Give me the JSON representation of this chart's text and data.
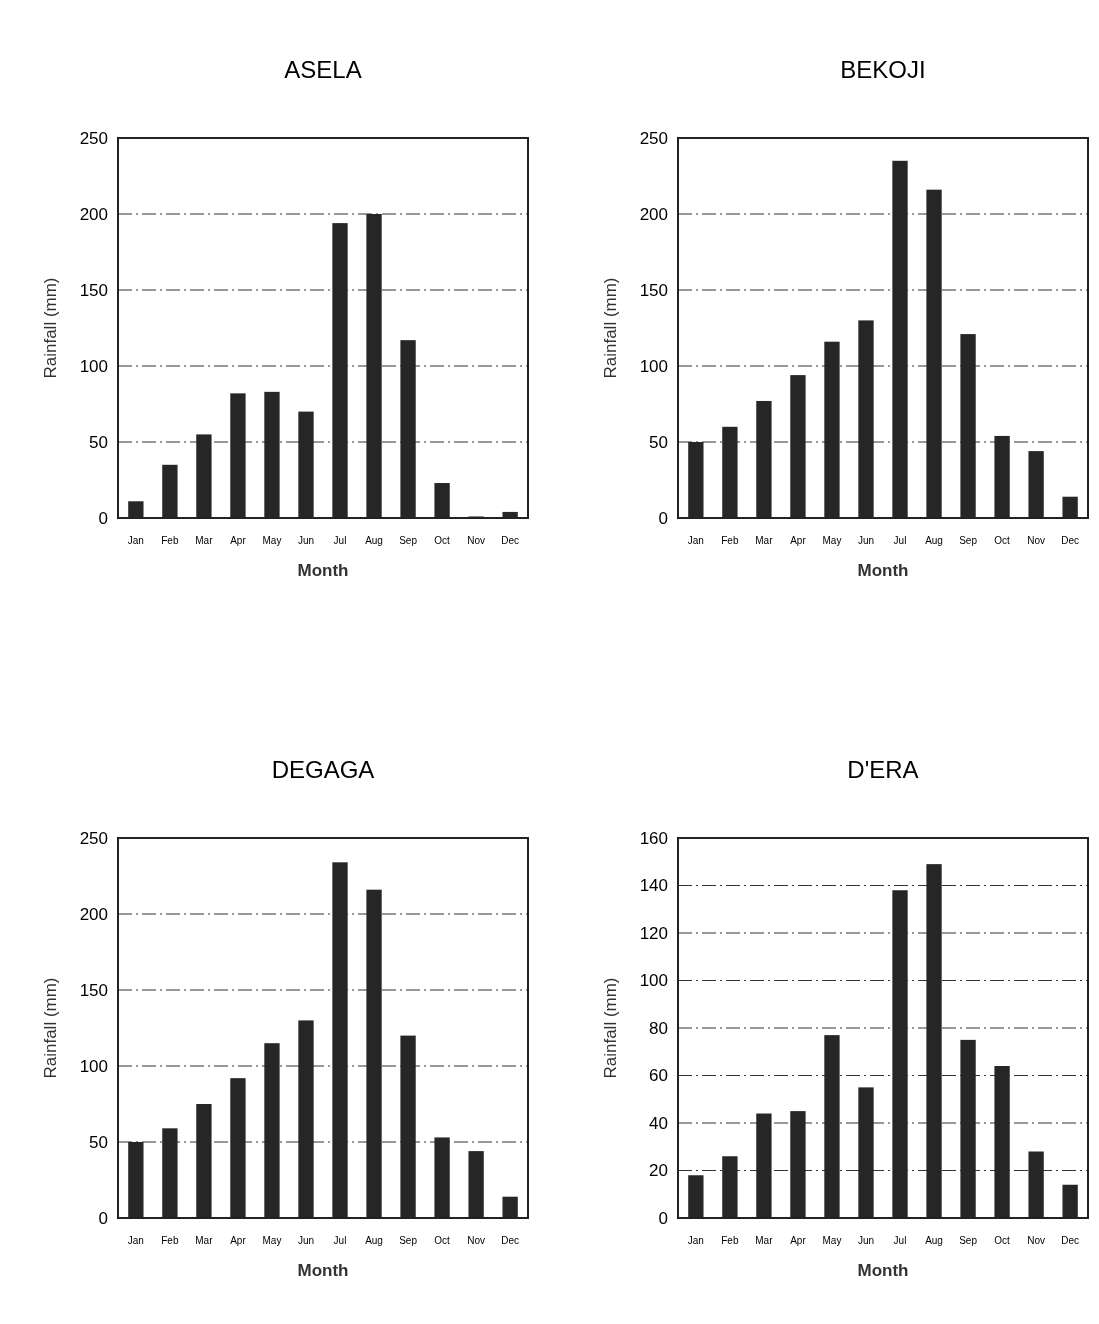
{
  "chart_data": [
    {
      "type": "bar",
      "title": "ASELA",
      "xlabel": "Month",
      "ylabel": "Rainfall (mm)",
      "categories": [
        "Jan",
        "Feb",
        "Mar",
        "Apr",
        "May",
        "Jun",
        "Jul",
        "Aug",
        "Sep",
        "Oct",
        "Nov",
        "Dec"
      ],
      "values": [
        11,
        35,
        55,
        82,
        83,
        70,
        194,
        200,
        117,
        23,
        1,
        4
      ],
      "color": "#262626",
      "ylim": [
        0,
        250
      ],
      "yticks": [
        0,
        50,
        100,
        150,
        200,
        250
      ],
      "grid": "y"
    },
    {
      "type": "bar",
      "title": "BEKOJI",
      "xlabel": "Month",
      "ylabel": "Rainfall (mm)",
      "categories": [
        "Jan",
        "Feb",
        "Mar",
        "Apr",
        "May",
        "Jun",
        "Jul",
        "Aug",
        "Sep",
        "Oct",
        "Nov",
        "Dec"
      ],
      "values": [
        50,
        60,
        77,
        94,
        116,
        130,
        235,
        216,
        121,
        54,
        44,
        14
      ],
      "color": "#262626",
      "ylim": [
        0,
        250
      ],
      "yticks": [
        0,
        50,
        100,
        150,
        200,
        250
      ],
      "grid": "y"
    },
    {
      "type": "bar",
      "title": "DEGAGA",
      "xlabel": "Month",
      "ylabel": "Rainfall (mm)",
      "categories": [
        "Jan",
        "Feb",
        "Mar",
        "Apr",
        "May",
        "Jun",
        "Jul",
        "Aug",
        "Sep",
        "Oct",
        "Nov",
        "Dec"
      ],
      "values": [
        50,
        59,
        75,
        92,
        115,
        130,
        234,
        216,
        120,
        53,
        44,
        14
      ],
      "color": "#262626",
      "ylim": [
        0,
        250
      ],
      "yticks": [
        0,
        50,
        100,
        150,
        200,
        250
      ],
      "grid": "y"
    },
    {
      "type": "bar",
      "title": "D'ERA",
      "xlabel": "Month",
      "ylabel": "Rainfall (mm)",
      "categories": [
        "Jan",
        "Feb",
        "Mar",
        "Apr",
        "May",
        "Jun",
        "Jul",
        "Aug",
        "Sep",
        "Oct",
        "Nov",
        "Dec"
      ],
      "values": [
        18,
        26,
        44,
        45,
        77,
        55,
        138,
        149,
        75,
        64,
        28,
        14
      ],
      "color": "#262626",
      "ylim": [
        0,
        160
      ],
      "yticks": [
        0,
        20,
        40,
        60,
        80,
        100,
        120,
        140,
        160
      ],
      "grid": "y"
    }
  ]
}
